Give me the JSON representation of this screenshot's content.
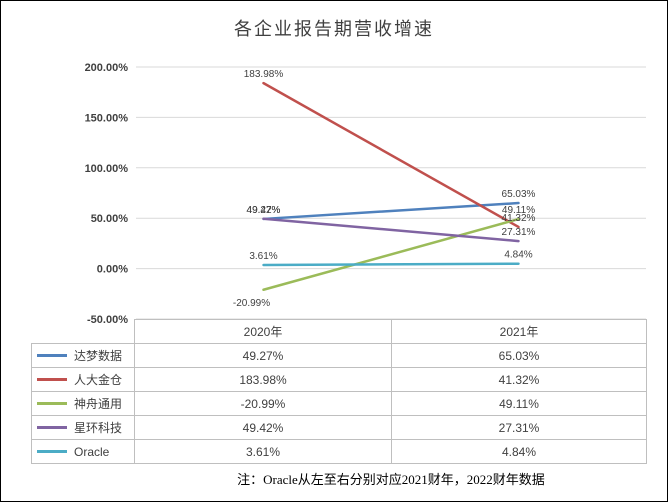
{
  "title": "各企业报告期营收增速",
  "note": "注：Oracle从左至右分别对应2021财年，2022财年数据",
  "chart_data": {
    "type": "line",
    "categories": [
      "2020年",
      "2021年"
    ],
    "series": [
      {
        "name": "达梦数据",
        "values": [
          49.27,
          65.03
        ],
        "labels": [
          "49.27%",
          "65.03%"
        ],
        "color": "#4F81BD"
      },
      {
        "name": "人大金仓",
        "values": [
          183.98,
          41.32
        ],
        "labels": [
          "183.98%",
          "41.32%"
        ],
        "color": "#C0504D"
      },
      {
        "name": "神舟通用",
        "values": [
          -20.99,
          49.11
        ],
        "labels": [
          "-20.99%",
          "49.11%"
        ],
        "color": "#9BBB59"
      },
      {
        "name": "星环科技",
        "values": [
          49.42,
          27.31
        ],
        "labels": [
          "49.42%",
          "27.31%"
        ],
        "color": "#8064A2"
      },
      {
        "name": "Oracle",
        "values": [
          3.61,
          4.84
        ],
        "labels": [
          "3.61%",
          "4.84%"
        ],
        "color": "#4BACC6"
      }
    ],
    "ylim": [
      -50,
      200
    ],
    "ytick_values": [
      200,
      150,
      100,
      50,
      0,
      -50
    ],
    "yticks": [
      "200.00%",
      "150.00%",
      "100.00%",
      "50.00%",
      "0.00%",
      "-50.00%"
    ],
    "grid": true,
    "legend_position": "data-table-left",
    "data_table": true,
    "gridline_color": "#d9d9d9",
    "label_color": "#404040"
  }
}
